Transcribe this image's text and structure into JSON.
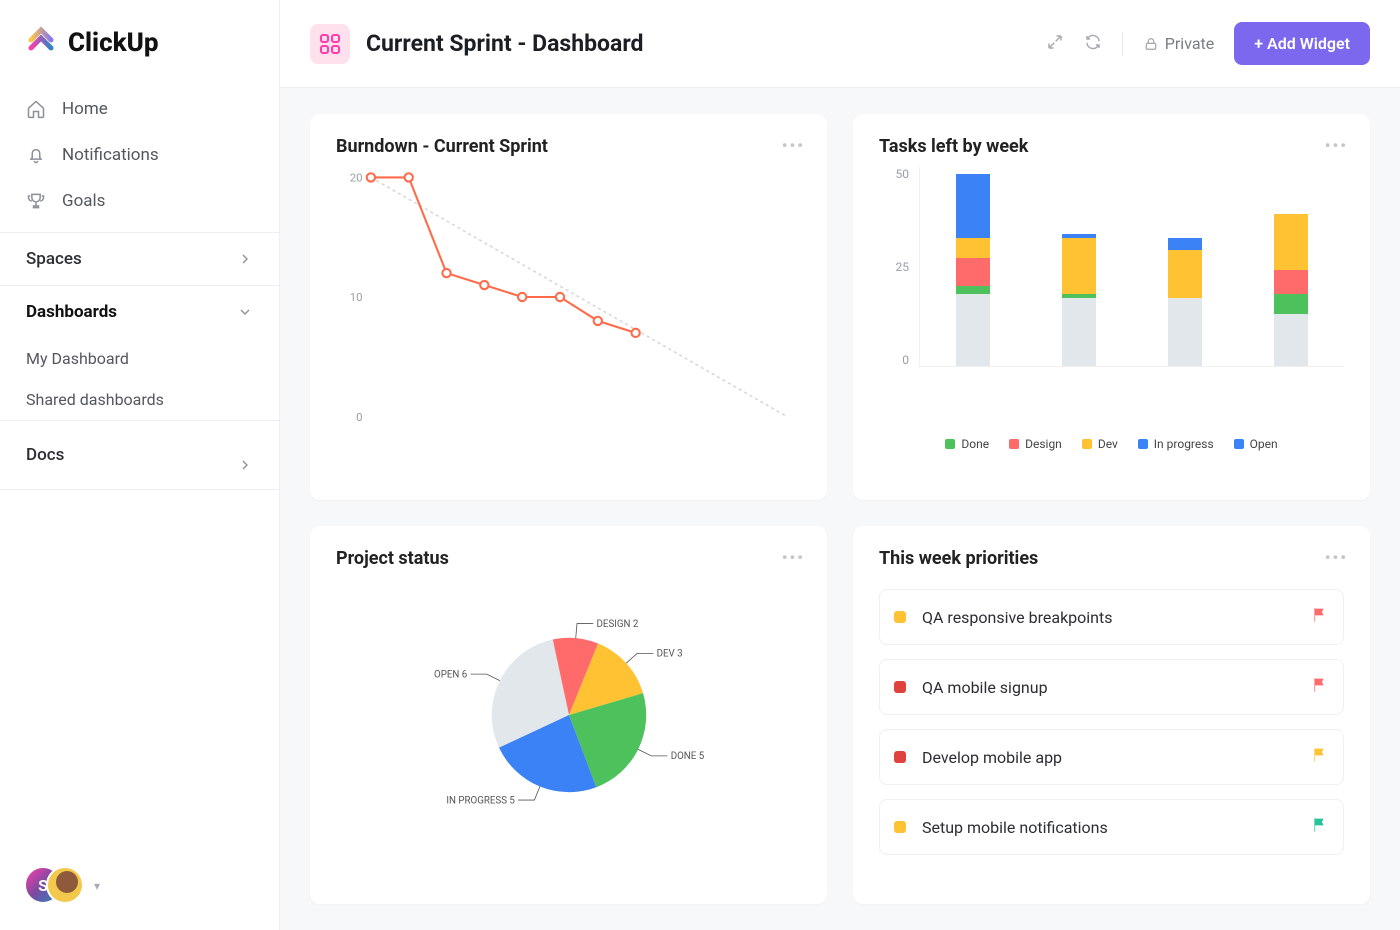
{
  "brand": "ClickUp",
  "sidebar": {
    "nav": [
      {
        "label": "Home"
      },
      {
        "label": "Notifications"
      },
      {
        "label": "Goals"
      }
    ],
    "sections": [
      {
        "label": "Spaces",
        "expanded": false
      },
      {
        "label": "Dashboards",
        "expanded": true,
        "children": [
          "My Dashboard",
          "Shared dashboards"
        ]
      },
      {
        "label": "Docs",
        "expanded": false
      }
    ],
    "user_initial": "S"
  },
  "header": {
    "title": "Current Sprint - Dashboard",
    "private_label": "Private",
    "add_widget_label": "+ Add Widget"
  },
  "colors": {
    "done": "#4dc25c",
    "design": "#ff6b6b",
    "dev": "#ffc233",
    "in_progress": "#3b82f6",
    "open": "#e2e7ec",
    "pastel_bg": "#ffffff",
    "accent": "#7b68ee"
  },
  "burndown": {
    "title": "Burndown - Current Sprint",
    "type": "line",
    "y_ticks": [
      20,
      10,
      0
    ],
    "line_color": "#ff6b4a",
    "marker": "circle",
    "marker_size": 4,
    "line_width": 2,
    "ideal_line_color": "#d4d8dc",
    "ideal_dash": "3,3",
    "data": [
      20,
      20,
      12,
      11,
      10,
      10,
      8,
      7
    ],
    "ideal_start": 20,
    "ideal_end": 0,
    "x_count": 12
  },
  "tasks_left": {
    "title": "Tasks left by week",
    "type": "stacked_bar",
    "y_max": 50,
    "y_ticks": [
      50,
      25,
      0
    ],
    "series": [
      "open",
      "done",
      "design",
      "dev",
      "in_progress"
    ],
    "series_labels": {
      "done": "Done",
      "design": "Design",
      "dev": "Dev",
      "in_progress": "In progress",
      "open": "Open"
    },
    "weeks": [
      {
        "open": 18,
        "done": 2,
        "design": 7,
        "dev": 5,
        "in_progress": 16
      },
      {
        "open": 17,
        "done": 1,
        "design": 0,
        "dev": 14,
        "in_progress": 1
      },
      {
        "open": 17,
        "done": 0,
        "design": 0,
        "dev": 12,
        "in_progress": 3
      },
      {
        "open": 13,
        "done": 5,
        "design": 6,
        "dev": 14,
        "in_progress": 0
      }
    ]
  },
  "project_status": {
    "title": "Project status",
    "type": "pie",
    "slices": [
      {
        "key": "open",
        "label": "OPEN 6",
        "value": 6
      },
      {
        "key": "design",
        "label": "DESIGN 2",
        "value": 2
      },
      {
        "key": "dev",
        "label": "DEV 3",
        "value": 3
      },
      {
        "key": "done",
        "label": "DONE 5",
        "value": 5
      },
      {
        "key": "in_progress",
        "label": "IN PROGRESS 5",
        "value": 5
      }
    ],
    "start_angle": 155,
    "label_fontsize": 12
  },
  "priorities": {
    "title": "This week priorities",
    "items": [
      {
        "bullet": "#ffc233",
        "text": "QA responsive breakpoints",
        "flag": "#ff6b6b"
      },
      {
        "bullet": "#e0423d",
        "text": "QA mobile signup",
        "flag": "#ff6b6b"
      },
      {
        "bullet": "#e0423d",
        "text": "Develop mobile app",
        "flag": "#ffc233"
      },
      {
        "bullet": "#ffc233",
        "text": "Setup mobile notifications",
        "flag": "#27c49a"
      }
    ]
  }
}
